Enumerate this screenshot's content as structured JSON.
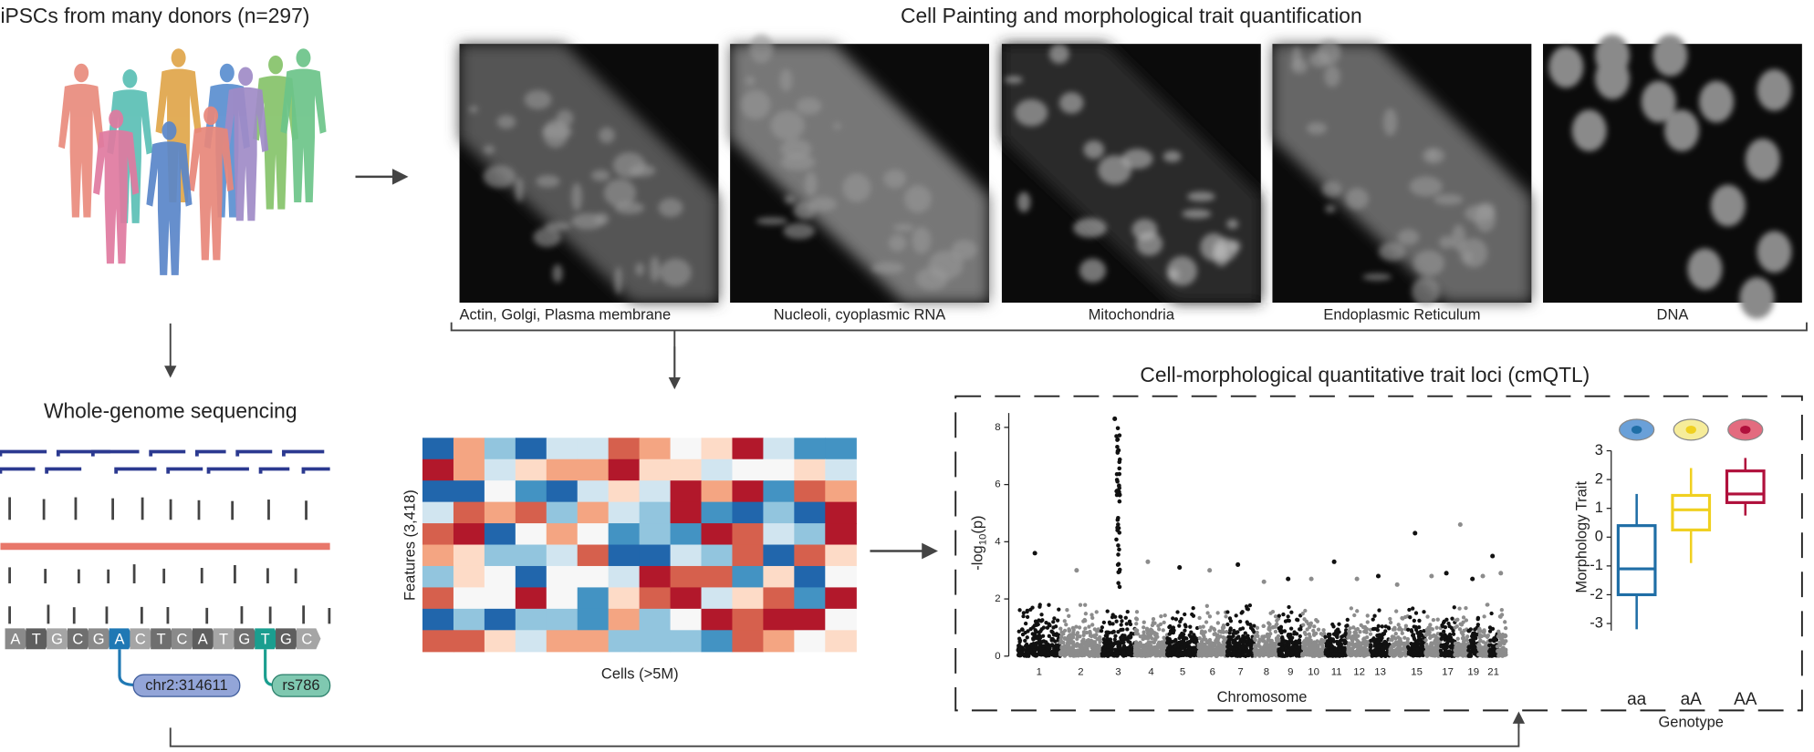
{
  "header": {
    "donors_title": "iPSCs from many donors (n=297)",
    "painting_title": "Cell Painting and morphological trait quantification"
  },
  "images": [
    {
      "label": "Actin, Golgi, Plasma membrane"
    },
    {
      "label": "Nucleoli, cyoplasmic RNA"
    },
    {
      "label": "Mitochondria"
    },
    {
      "label": "Endoplasmic Reticulum"
    },
    {
      "label": "DNA"
    }
  ],
  "sequencing": {
    "title": "Whole-genome sequencing",
    "bases": [
      "A",
      "T",
      "G",
      "C",
      "G",
      "A",
      "C",
      "T",
      "C",
      "A",
      "T",
      "G",
      "T",
      "G",
      "C"
    ],
    "variant_labels": [
      "chr2:314611",
      "rs786"
    ]
  },
  "heatmap": {
    "y_label": "Features (3,418)",
    "x_label": "Cells (>5M)"
  },
  "cmqtl": {
    "title": "Cell-morphological quantitative trait loci (cmQTL)",
    "manhattan": {
      "y_label": {
        "prefix": "-log",
        "subscript": "10",
        "suffix": "(p)"
      },
      "ylim": [
        0,
        8.5
      ],
      "yticks": [
        0,
        2,
        4,
        6,
        8
      ],
      "x_label": "Chromosome",
      "chromosome_labels": [
        "1",
        "2",
        "3",
        "4",
        "5",
        "6",
        "7",
        "8",
        "9",
        "10",
        "11",
        "12",
        "13",
        null,
        "15",
        null,
        "17",
        null,
        "19",
        null,
        "21",
        null
      ],
      "peaks": [
        3.6,
        3.0,
        8.3,
        3.3,
        3.1,
        3.0,
        3.2,
        2.6,
        2.7,
        2.7,
        3.3,
        2.7,
        2.8,
        2.5,
        4.3,
        2.8,
        2.9,
        4.6,
        2.7,
        2.8,
        3.5,
        2.9
      ],
      "colors": [
        "#111111",
        "#8c8c8c"
      ]
    },
    "boxplot": {
      "y_label": "Morphology Trait",
      "x_label": "Genotype",
      "ylim": [
        -3.25,
        3.25
      ],
      "yticks": [
        3,
        2,
        1,
        0,
        -1,
        -2,
        -3
      ],
      "groups": [
        {
          "name": "aa",
          "color": "#1f6ea6",
          "low": -3.2,
          "q1": -2.0,
          "median": -1.1,
          "q3": 0.4,
          "high": 1.5
        },
        {
          "name": "aA",
          "color": "#f0d020",
          "low": -0.9,
          "q1": 0.25,
          "median": 0.95,
          "q3": 1.45,
          "high": 2.4
        },
        {
          "name": "AA",
          "color": "#b0103c",
          "low": 0.75,
          "q1": 1.2,
          "median": 1.5,
          "q3": 2.3,
          "high": 2.75
        }
      ]
    }
  }
}
